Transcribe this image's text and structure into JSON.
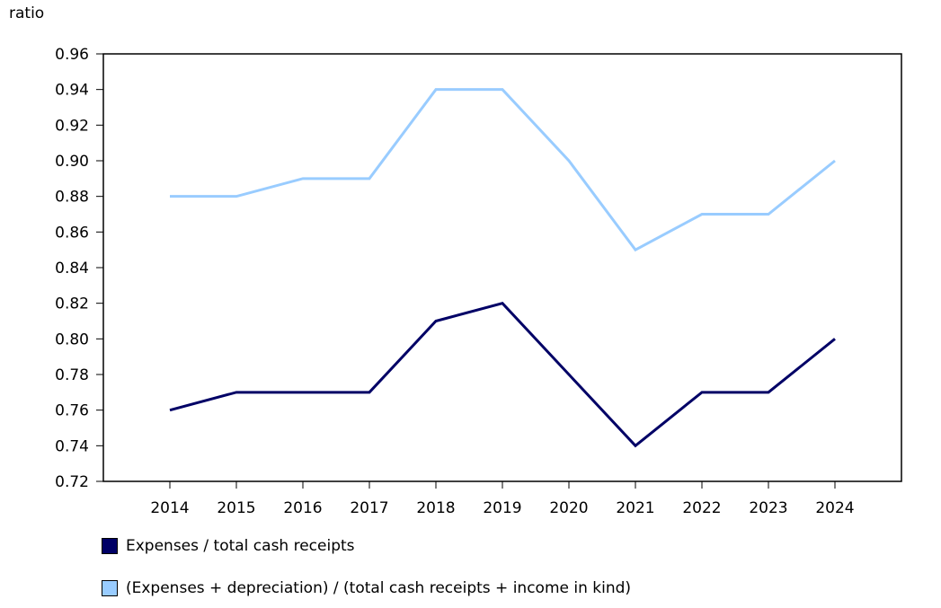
{
  "chart_data": {
    "type": "line",
    "title": "",
    "ylabel": "ratio",
    "xlabel": "",
    "ylim": [
      0.72,
      0.96
    ],
    "ytick_step": 0.02,
    "categories": [
      "2014",
      "2015",
      "2016",
      "2017",
      "2018",
      "2019",
      "2020",
      "2021",
      "2022",
      "2023",
      "2024"
    ],
    "yticks": [
      "0.72",
      "0.74",
      "0.76",
      "0.78",
      "0.80",
      "0.82",
      "0.84",
      "0.86",
      "0.88",
      "0.90",
      "0.92",
      "0.94",
      "0.96"
    ],
    "series": [
      {
        "name": "Expenses / total cash receipts",
        "color": "#000066",
        "values": [
          0.76,
          0.77,
          0.77,
          0.77,
          0.81,
          0.82,
          0.78,
          0.74,
          0.77,
          0.77,
          0.8
        ]
      },
      {
        "name": "(Expenses + depreciation) / (total cash receipts + income in kind)",
        "color": "#99ccff",
        "values": [
          0.88,
          0.88,
          0.89,
          0.89,
          0.94,
          0.94,
          0.9,
          0.85,
          0.87,
          0.87,
          0.9
        ]
      }
    ],
    "grid": false,
    "legend_position": "bottom-left"
  }
}
